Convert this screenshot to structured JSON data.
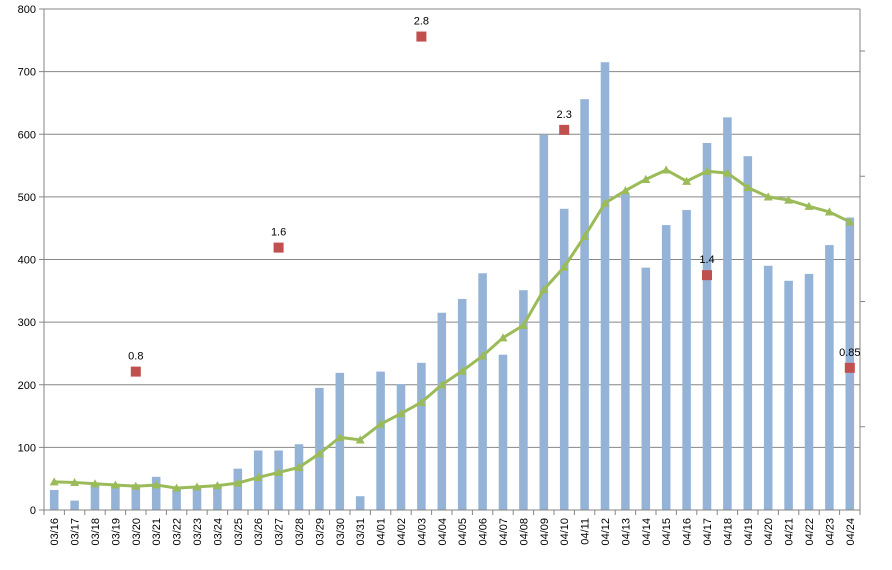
{
  "chart_data": {
    "type": "bar",
    "categories": [
      "03/16",
      "03/17",
      "03/18",
      "03/19",
      "03/20",
      "03/21",
      "03/22",
      "03/23",
      "03/24",
      "03/25",
      "03/26",
      "03/27",
      "03/28",
      "03/29",
      "03/30",
      "03/31",
      "04/01",
      "04/02",
      "04/03",
      "04/04",
      "04/05",
      "04/06",
      "04/07",
      "04/08",
      "04/09",
      "04/10",
      "04/11",
      "04/12",
      "04/13",
      "04/14",
      "04/15",
      "04/16",
      "04/17",
      "04/18",
      "04/19",
      "04/20",
      "04/21",
      "04/22",
      "04/23",
      "04/24"
    ],
    "ylim": [
      0,
      800
    ],
    "yticks": [
      0,
      100,
      200,
      300,
      400,
      500,
      600,
      700,
      800
    ],
    "grid": true,
    "series": [
      {
        "type": "bar",
        "color": "#95b3d7",
        "values": [
          32,
          15,
          43,
          39,
          41,
          53,
          33,
          37,
          41,
          66,
          95,
          95,
          105,
          195,
          219,
          22,
          221,
          201,
          235,
          315,
          337,
          378,
          248,
          351,
          599,
          481,
          656,
          715,
          505,
          387,
          455,
          479,
          586,
          627,
          565,
          390,
          366,
          377,
          423,
          467
        ]
      },
      {
        "type": "line",
        "color": "#9bbb59",
        "marker": "triangle",
        "values": [
          45,
          44,
          42,
          40,
          38,
          40,
          35,
          37,
          39,
          43,
          52,
          60,
          68,
          90,
          116,
          112,
          137,
          154,
          172,
          200,
          222,
          246,
          275,
          295,
          352,
          388,
          437,
          490,
          510,
          528,
          543,
          525,
          541,
          538,
          515,
          500,
          495,
          485,
          476,
          460
        ]
      },
      {
        "type": "scatter",
        "color": "#c0504d",
        "marker": "square",
        "points": [
          {
            "x": "03/20",
            "y": 221,
            "label": "0.8"
          },
          {
            "x": "03/27",
            "y": 419,
            "label": "1.6"
          },
          {
            "x": "04/03",
            "y": 756,
            "label": "2.8"
          },
          {
            "x": "04/10",
            "y": 607,
            "label": "2.3"
          },
          {
            "x": "04/17",
            "y": 375,
            "label": "1.4"
          },
          {
            "x": "04/24",
            "y": 227,
            "label": "0.85"
          }
        ]
      }
    ]
  }
}
